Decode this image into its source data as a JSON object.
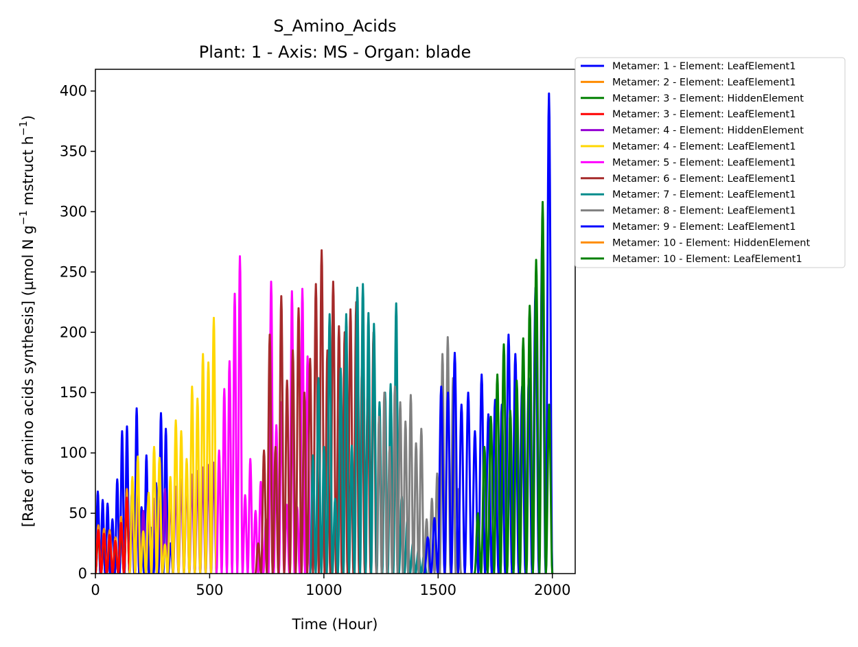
{
  "chart_data": {
    "type": "line",
    "title": "S_Amino_Acids",
    "subtitle": "Plant: 1 - Axis: MS - Organ: blade",
    "xlabel": "Time (Hour)",
    "ylabel_parts": {
      "before": "[Rate of amino acids synthesis] (µmol N g",
      "sup1": "−1",
      "middle": " mstruct h",
      "sup2": "−1",
      "after": ")"
    },
    "xlim": [
      0,
      2100
    ],
    "ylim": [
      0,
      418
    ],
    "xticks": [
      0,
      500,
      1000,
      1500,
      2000
    ],
    "yticks": [
      0,
      50,
      100,
      150,
      200,
      250,
      300,
      350,
      400
    ],
    "grid": false,
    "legend_position": "outside-right-top",
    "period_hours": 24,
    "series": [
      {
        "name": "Metamer: 1 - Element: LeafElement1",
        "color": "#0000ff",
        "start": 0,
        "end": 340,
        "peaks": [
          68,
          61,
          58,
          45,
          78,
          118,
          122,
          66,
          137,
          55,
          98,
          38,
          75,
          133,
          120,
          25
        ]
      },
      {
        "name": "Metamer: 2 - Element: LeafElement1",
        "color": "#ff8c00",
        "start": 0,
        "end": 150,
        "peaks": [
          40,
          37,
          36,
          30,
          47,
          70
        ]
      },
      {
        "name": "Metamer: 3 - Element: HiddenElement",
        "color": "#008000",
        "start": 0,
        "end": 150,
        "peaks": [
          32,
          30,
          29,
          24,
          38,
          56
        ]
      },
      {
        "name": "Metamer: 3 - Element: LeafElement1",
        "color": "#ff0000",
        "start": 0,
        "end": 150,
        "peaks": [
          36,
          33,
          32,
          27,
          42,
          63
        ]
      },
      {
        "name": "Metamer: 4 - Element: HiddenElement",
        "color": "#9400d3",
        "start": 150,
        "end": 530,
        "peaks": [
          55,
          60,
          52,
          58,
          62,
          58,
          70,
          64,
          72,
          78,
          80,
          82,
          85,
          88,
          90,
          92
        ]
      },
      {
        "name": "Metamer: 4 - Element: LeafElement1",
        "color": "#ffd700",
        "start": 150,
        "end": 530,
        "peaks": [
          80,
          97,
          35,
          67,
          105,
          96,
          24,
          80,
          127,
          118,
          95,
          155,
          145,
          182,
          175,
          212
        ]
      },
      {
        "name": "Metamer: 5 - Element: LeafElement1",
        "color": "#ff00ff",
        "start": 530,
        "end": 940,
        "peaks": [
          102,
          153,
          176,
          232,
          263,
          65,
          95,
          52,
          76,
          45,
          242,
          123,
          142,
          57,
          234,
          55,
          236,
          180
        ]
      },
      {
        "name": "Metamer: 6 - Element: LeafElement1",
        "color": "#a52a2a",
        "start": 700,
        "end": 1230,
        "peaks": [
          25,
          102,
          198,
          105,
          230,
          160,
          185,
          220,
          150,
          178,
          240,
          268,
          185,
          242,
          205,
          200,
          219,
          225,
          170,
          150,
          200
        ]
      },
      {
        "name": "Metamer: 7 - Element: LeafElement1",
        "color": "#008b8b",
        "start": 940,
        "end": 1450,
        "peaks": [
          98,
          162,
          105,
          215,
          62,
          170,
          215,
          106,
          237,
          240,
          216,
          207,
          142,
          150,
          157,
          224,
          64,
          45,
          25,
          20,
          15
        ]
      },
      {
        "name": "Metamer: 8 - Element: LeafElement1",
        "color": "#808080",
        "start": 1230,
        "end": 1600,
        "peaks": [
          130,
          150,
          105,
          155,
          142,
          126,
          148,
          108,
          120,
          45,
          62,
          83,
          182,
          196,
          162,
          70
        ]
      },
      {
        "name": "Metamer: 9 - Element: LeafElement1",
        "color": "#0000ff",
        "start": 1440,
        "end": 2000,
        "peaks": [
          30,
          46,
          155,
          150,
          183,
          140,
          150,
          118,
          165,
          132,
          144,
          140,
          198,
          182,
          155,
          162,
          237,
          282,
          398
        ]
      },
      {
        "name": "Metamer: 10 - Element: HiddenElement",
        "color": "#ff8c00",
        "start": 1660,
        "end": 1660,
        "peaks": []
      },
      {
        "name": "Metamer: 10 - Element: LeafElement1",
        "color": "#008000",
        "start": 1660,
        "end": 2000,
        "peaks": [
          50,
          105,
          130,
          165,
          190,
          135,
          160,
          195,
          222,
          260,
          308,
          140
        ]
      }
    ]
  }
}
